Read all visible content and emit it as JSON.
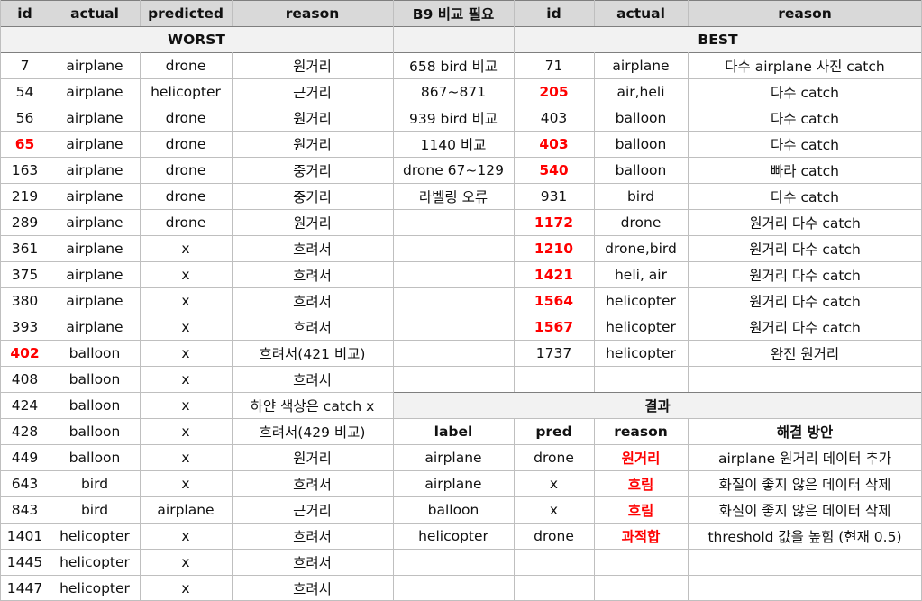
{
  "header": {
    "left": [
      "id",
      "actual",
      "predicted",
      "reason"
    ],
    "b9": "B9 비교 필요",
    "right": [
      "id",
      "actual",
      "reason"
    ]
  },
  "sections": {
    "worst": "WORST",
    "best": "BEST",
    "result": "결과"
  },
  "worst_rows": [
    {
      "id": "7",
      "actual": "airplane",
      "predicted": "drone",
      "reason": "원거리",
      "highlight": false
    },
    {
      "id": "54",
      "actual": "airplane",
      "predicted": "helicopter",
      "reason": "근거리",
      "highlight": false
    },
    {
      "id": "56",
      "actual": "airplane",
      "predicted": "drone",
      "reason": "원거리",
      "highlight": false
    },
    {
      "id": "65",
      "actual": "airplane",
      "predicted": "drone",
      "reason": "원거리",
      "highlight": true
    },
    {
      "id": "163",
      "actual": "airplane",
      "predicted": "drone",
      "reason": "중거리",
      "highlight": false
    },
    {
      "id": "219",
      "actual": "airplane",
      "predicted": "drone",
      "reason": "중거리",
      "highlight": false
    },
    {
      "id": "289",
      "actual": "airplane",
      "predicted": "drone",
      "reason": "원거리",
      "highlight": false
    },
    {
      "id": "361",
      "actual": "airplane",
      "predicted": "x",
      "reason": "흐려서",
      "highlight": false
    },
    {
      "id": "375",
      "actual": "airplane",
      "predicted": "x",
      "reason": "흐려서",
      "highlight": false
    },
    {
      "id": "380",
      "actual": "airplane",
      "predicted": "x",
      "reason": "흐려서",
      "highlight": false
    },
    {
      "id": "393",
      "actual": "airplane",
      "predicted": "x",
      "reason": "흐려서",
      "highlight": false
    },
    {
      "id": "402",
      "actual": "balloon",
      "predicted": "x",
      "reason": "흐려서(421 비교)",
      "highlight": true
    },
    {
      "id": "408",
      "actual": "balloon",
      "predicted": "x",
      "reason": "흐려서",
      "highlight": false
    },
    {
      "id": "424",
      "actual": "balloon",
      "predicted": "x",
      "reason": "하얀 색상은 catch x",
      "highlight": false
    },
    {
      "id": "428",
      "actual": "balloon",
      "predicted": "x",
      "reason": "흐려서(429 비교)",
      "highlight": false
    },
    {
      "id": "449",
      "actual": "balloon",
      "predicted": "x",
      "reason": "원거리",
      "highlight": false
    },
    {
      "id": "643",
      "actual": "bird",
      "predicted": "x",
      "reason": "흐려서",
      "highlight": false
    },
    {
      "id": "843",
      "actual": "bird",
      "predicted": "airplane",
      "reason": "근거리",
      "highlight": false
    },
    {
      "id": "1401",
      "actual": "helicopter",
      "predicted": "x",
      "reason": "흐려서",
      "highlight": false
    },
    {
      "id": "1445",
      "actual": "helicopter",
      "predicted": "x",
      "reason": "흐려서",
      "highlight": false
    },
    {
      "id": "1447",
      "actual": "helicopter",
      "predicted": "x",
      "reason": "흐려서",
      "highlight": false
    }
  ],
  "b9_notes": [
    "658 bird 비교",
    "867~871",
    "939 bird 비교",
    "1140 비교",
    "drone 67~129",
    "라벨링 오류"
  ],
  "best_rows": [
    {
      "id": "71",
      "actual": "airplane",
      "reason": "다수 airplane 사진 catch",
      "highlight": false
    },
    {
      "id": "205",
      "actual": "air,heli",
      "reason": "다수 catch",
      "highlight": true
    },
    {
      "id": "403",
      "actual": "balloon",
      "reason": "다수 catch",
      "highlight": false
    },
    {
      "id": "403",
      "actual": "balloon",
      "reason": "다수 catch",
      "highlight": true
    },
    {
      "id": "540",
      "actual": "balloon",
      "reason": "빠라 catch",
      "highlight": true
    },
    {
      "id": "931",
      "actual": "bird",
      "reason": "다수 catch",
      "highlight": false
    },
    {
      "id": "1172",
      "actual": "drone",
      "reason": "원거리 다수 catch",
      "highlight": true
    },
    {
      "id": "1210",
      "actual": "drone,bird",
      "reason": "원거리 다수 catch",
      "highlight": true
    },
    {
      "id": "1421",
      "actual": "heli, air",
      "reason": "원거리 다수 catch",
      "highlight": true
    },
    {
      "id": "1564",
      "actual": "helicopter",
      "reason": "원거리 다수 catch",
      "highlight": true
    },
    {
      "id": "1567",
      "actual": "helicopter",
      "reason": "원거리 다수 catch",
      "highlight": true
    },
    {
      "id": "1737",
      "actual": "helicopter",
      "reason": "완전 원거리",
      "highlight": false
    }
  ],
  "result": {
    "headers": [
      "label",
      "pred",
      "reason",
      "해결 방안"
    ],
    "rows": [
      {
        "label": "airplane",
        "pred": "drone",
        "reason": "원거리",
        "solution": "airplane 원거리 데이터 추가"
      },
      {
        "label": "airplane",
        "pred": "x",
        "reason": "흐림",
        "solution": "화질이 좋지 않은 데이터 삭제"
      },
      {
        "label": "balloon",
        "pred": "x",
        "reason": "흐림",
        "solution": "화질이 좋지 않은 데이터 삭제"
      },
      {
        "label": "helicopter",
        "pred": "drone",
        "reason": "과적합",
        "solution": "threshold 값을 높힘 (현재 0.5)"
      }
    ]
  },
  "colors": {
    "header_bg": "#d9d9d9",
    "highlight": "#ff0000",
    "grid": "#bfbfbf"
  }
}
